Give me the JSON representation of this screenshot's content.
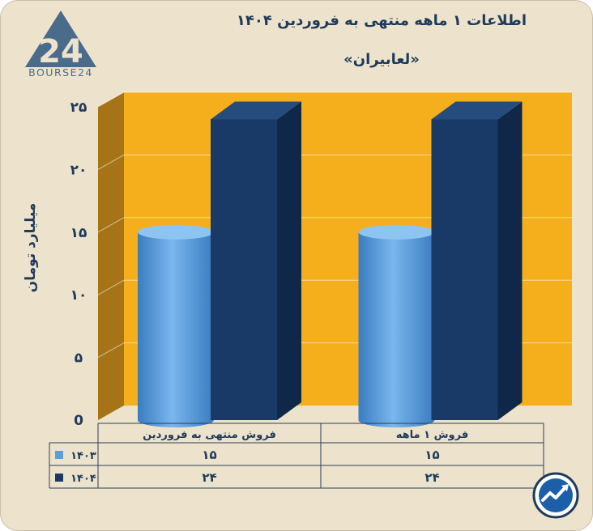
{
  "title": "اطلاعات ۱ ماهه منتهی به فروردین ۱۴۰۴",
  "subtitle": "«لعابیران»",
  "logo": {
    "text": "BOURSE24",
    "icon": "bourse24-logo"
  },
  "badge_icon": "trend-arrow-badge",
  "colors": {
    "background": "#ede3cd",
    "plot_back": "#f5ae1c",
    "plot_side": "#a67416",
    "series_1403": "#5b9ee0",
    "series_1404": "#193a66"
  },
  "chart_data": {
    "type": "bar",
    "title": "اطلاعات ۱ ماهه منتهی به فروردین ۱۴۰۴",
    "subtitle": "«لعابیران»",
    "ylabel": "میلیارد تومان",
    "xlabel": "",
    "ylim": [
      0,
      25
    ],
    "yticks": [
      0,
      5,
      10,
      15,
      20,
      25
    ],
    "ytick_labels": [
      "0",
      "۵",
      "۱۰",
      "۱۵",
      "۲۰",
      "۲۵"
    ],
    "grid": true,
    "categories": [
      "فروش ۱ ماهه",
      "فروش منتهی به فروردین"
    ],
    "series": [
      {
        "name": "۱۴۰۳",
        "values": [
          15,
          15
        ],
        "value_labels": [
          "۱۵",
          "۱۵"
        ],
        "shape": "cylinder"
      },
      {
        "name": "۱۴۰۴",
        "values": [
          24,
          24
        ],
        "value_labels": [
          "۲۴",
          "۲۴"
        ],
        "shape": "box"
      }
    ],
    "legend": "data-table-below"
  }
}
